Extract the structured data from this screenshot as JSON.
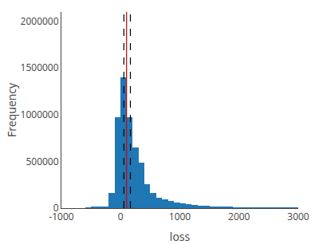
{
  "chart_data": {
    "type": "histogram",
    "title": "",
    "xlabel": "loss",
    "ylabel": "Frequency",
    "bins": [
      -600,
      -500,
      -400,
      -300,
      -200,
      -100,
      0,
      100,
      200,
      300,
      400,
      500,
      600,
      700,
      800,
      900,
      1000,
      1100,
      1200,
      1300,
      1400,
      1500,
      1600,
      1700,
      1800,
      1900,
      2000,
      2100,
      2200,
      2300,
      2400,
      2500,
      2600,
      2700,
      2800,
      2900,
      3000
    ],
    "values": [
      5000,
      10000,
      10000,
      20000,
      160000,
      970000,
      1400000,
      970000,
      650000,
      490000,
      260000,
      165000,
      115000,
      95000,
      75000,
      62000,
      50000,
      42000,
      35000,
      28000,
      22000,
      18000,
      14000,
      11000,
      9000,
      7000,
      5500,
      4000,
      3000,
      2500,
      2000,
      1500,
      1200,
      900,
      700,
      500
    ],
    "vlines": [
      {
        "x": 100,
        "color": "#cc0000",
        "line_style": "solid"
      },
      {
        "x": 55,
        "color": "#000000",
        "line_style": "dashed"
      },
      {
        "x": 165,
        "color": "#000000",
        "line_style": "dashed"
      }
    ],
    "xlim": [
      -1000,
      3000
    ],
    "xticks": [
      -1000,
      0,
      1000,
      2000,
      3000
    ],
    "ylim": [
      0,
      2100000
    ],
    "yticks": [
      0,
      500000,
      1000000,
      1500000,
      2000000
    ],
    "grid": false
  }
}
